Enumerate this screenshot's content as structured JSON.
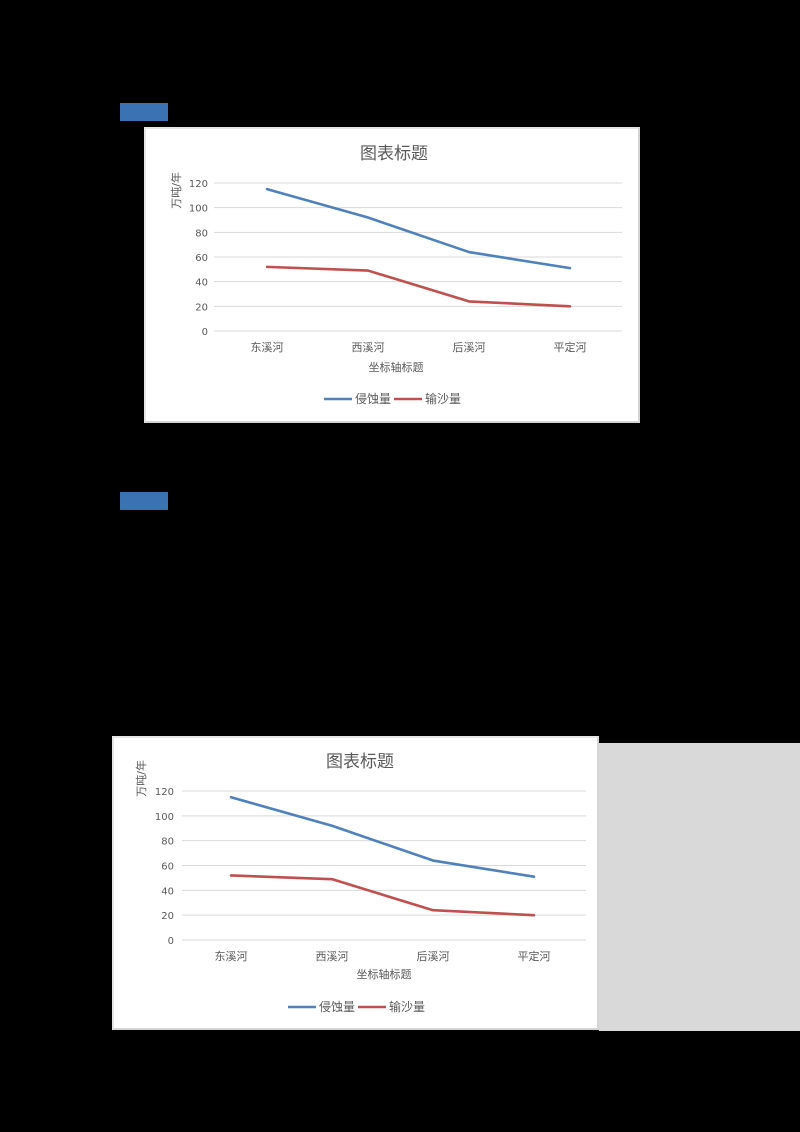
{
  "page": {
    "background": "#000000",
    "section_labels": [
      {
        "text": "",
        "color": "#3a72b4"
      },
      {
        "text": "",
        "color": "#3a72b4"
      }
    ],
    "side_panel_color": "#d9d9d9"
  },
  "chart_data": [
    {
      "type": "line",
      "title": "图表标题",
      "xlabel": "坐标轴标题",
      "ylabel": "万吨/年",
      "categories": [
        "东溪河",
        "西溪河",
        "后溪河",
        "平定河"
      ],
      "series": [
        {
          "name": "侵蚀量",
          "color": "#4f81bd",
          "values": [
            115,
            92,
            64,
            51
          ]
        },
        {
          "name": "输沙量",
          "color": "#c0504d",
          "values": [
            52,
            49,
            24,
            20
          ]
        }
      ],
      "ylim": [
        0,
        120
      ],
      "yticks": [
        0,
        20,
        40,
        60,
        80,
        100,
        120
      ],
      "grid": true,
      "legend_position": "bottom"
    },
    {
      "type": "line",
      "title": "图表标题",
      "xlabel": "坐标轴标题",
      "ylabel": "万吨/年",
      "categories": [
        "东溪河",
        "西溪河",
        "后溪河",
        "平定河"
      ],
      "series": [
        {
          "name": "侵蚀量",
          "color": "#4f81bd",
          "values": [
            115,
            92,
            64,
            51
          ]
        },
        {
          "name": "输沙量",
          "color": "#c0504d",
          "values": [
            52,
            49,
            24,
            20
          ]
        }
      ],
      "ylim": [
        0,
        120
      ],
      "yticks": [
        0,
        20,
        40,
        60,
        80,
        100,
        120
      ],
      "grid": true,
      "legend_position": "bottom"
    }
  ]
}
